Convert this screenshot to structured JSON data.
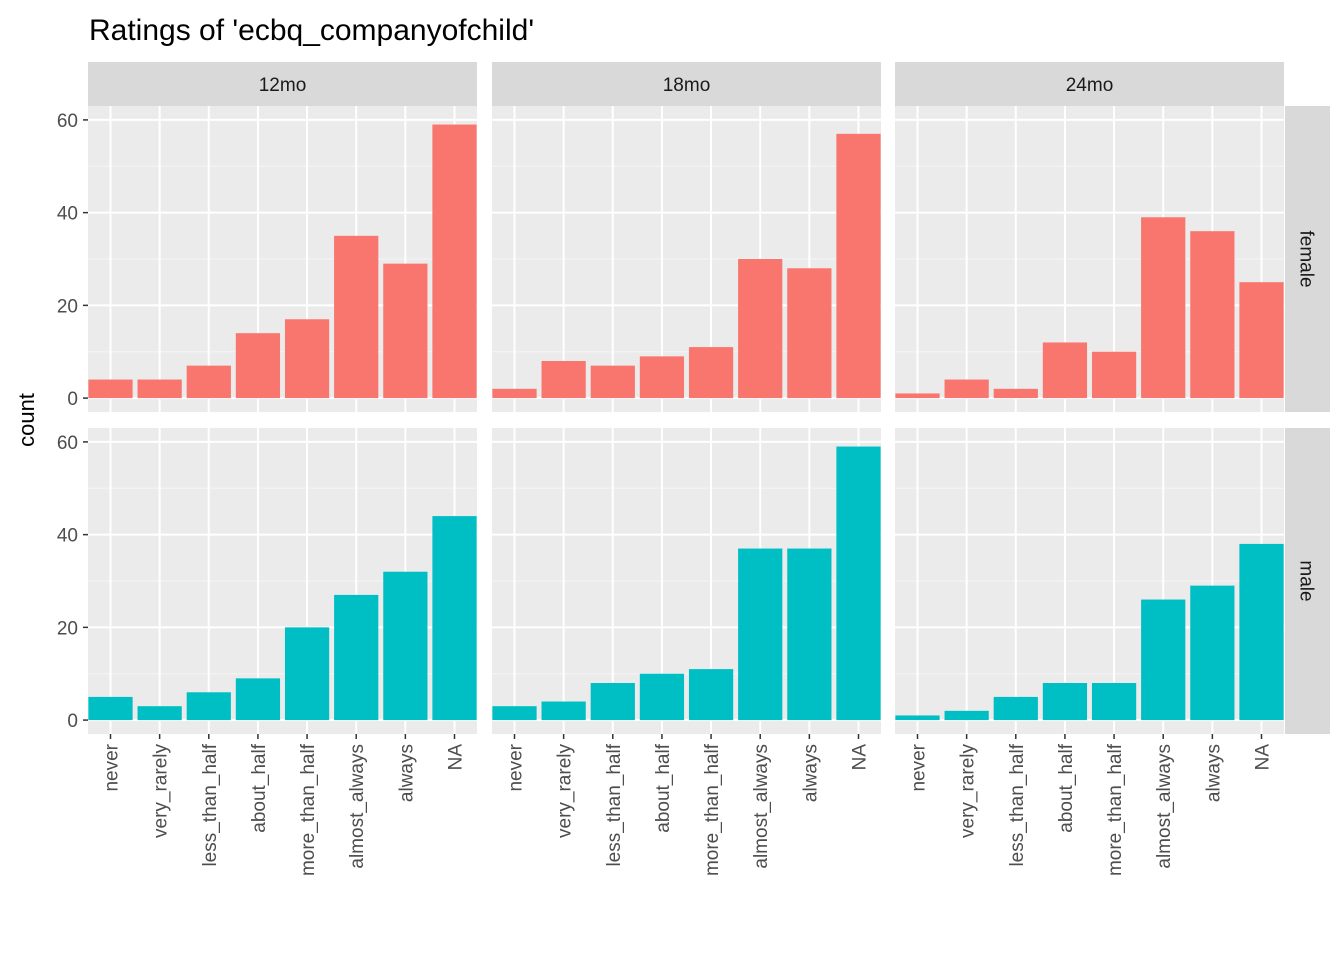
{
  "chart_data": {
    "type": "bar",
    "title": "Ratings of 'ecbq_companyofchild'",
    "ylabel": "count",
    "xlabel": "",
    "ylim": [
      0,
      60
    ],
    "yticks": [
      0,
      20,
      40,
      60
    ],
    "grid": true,
    "legend": "none",
    "categories": [
      "never",
      "very_rarely",
      "less_than_half",
      "about_half",
      "more_than_half",
      "almost_always",
      "always",
      "NA"
    ],
    "facet_columns": [
      "12mo",
      "18mo",
      "24mo"
    ],
    "facet_rows": [
      {
        "label": "female",
        "color": "#F8766D"
      },
      {
        "label": "male",
        "color": "#00BFC4"
      }
    ],
    "panels": [
      {
        "row": "female",
        "col": "12mo",
        "values": [
          4,
          4,
          7,
          14,
          17,
          35,
          29,
          59
        ]
      },
      {
        "row": "female",
        "col": "18mo",
        "values": [
          2,
          8,
          7,
          9,
          11,
          30,
          28,
          57
        ]
      },
      {
        "row": "female",
        "col": "24mo",
        "values": [
          1,
          4,
          2,
          12,
          10,
          39,
          36,
          25
        ]
      },
      {
        "row": "male",
        "col": "12mo",
        "values": [
          5,
          3,
          6,
          9,
          20,
          27,
          32,
          44
        ]
      },
      {
        "row": "male",
        "col": "18mo",
        "values": [
          3,
          4,
          8,
          10,
          11,
          37,
          37,
          59
        ]
      },
      {
        "row": "male",
        "col": "24mo",
        "values": [
          1,
          2,
          5,
          8,
          8,
          26,
          29,
          38
        ]
      }
    ]
  }
}
